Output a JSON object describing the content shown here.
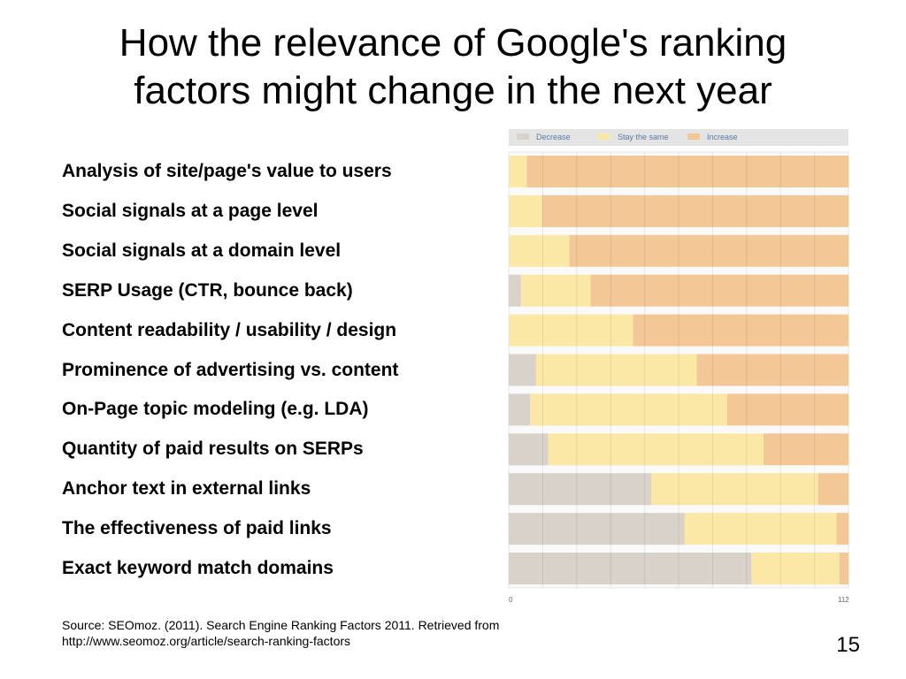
{
  "title_line1": "How the relevance of Google's ranking",
  "title_line2": "factors might change in the next year",
  "chart_data": {
    "type": "bar",
    "orientation": "horizontal",
    "stacked": true,
    "title": "",
    "xlim": [
      0,
      112
    ],
    "x_ticks": [
      "0",
      "112"
    ],
    "grid": true,
    "legend_position": "top",
    "categories": [
      "Analysis of site/page's value to users",
      "Social signals at a page level",
      "Social signals at a domain level",
      "SERP Usage (CTR, bounce back)",
      "Content readability / usability / design",
      "Prominence of advertising vs. content",
      "On-Page topic modeling (e.g. LDA)",
      "Quantity of paid results on SERPs",
      "Anchor text in external links",
      "The effectiveness of paid links",
      "Exact keyword match domains"
    ],
    "series": [
      {
        "name": "Decrease",
        "color": "#d8d2ca",
        "values": [
          0,
          0,
          0,
          4,
          0,
          9,
          7,
          13,
          47,
          58,
          80
        ]
      },
      {
        "name": "Stay the same",
        "color": "#fbe8a6",
        "values": [
          6,
          11,
          20,
          23,
          41,
          53,
          65,
          71,
          55,
          50,
          29
        ]
      },
      {
        "name": "Increase",
        "color": "#f3c896",
        "values": [
          106,
          101,
          92,
          85,
          71,
          50,
          40,
          28,
          10,
          4,
          3
        ]
      }
    ]
  },
  "source_line1": "Source: SEOmoz. (2011). Search Engine Ranking Factors 2011. Retrieved from",
  "source_line2": "http://www.seomoz.org/article/search-ranking-factors",
  "page_number": "15"
}
